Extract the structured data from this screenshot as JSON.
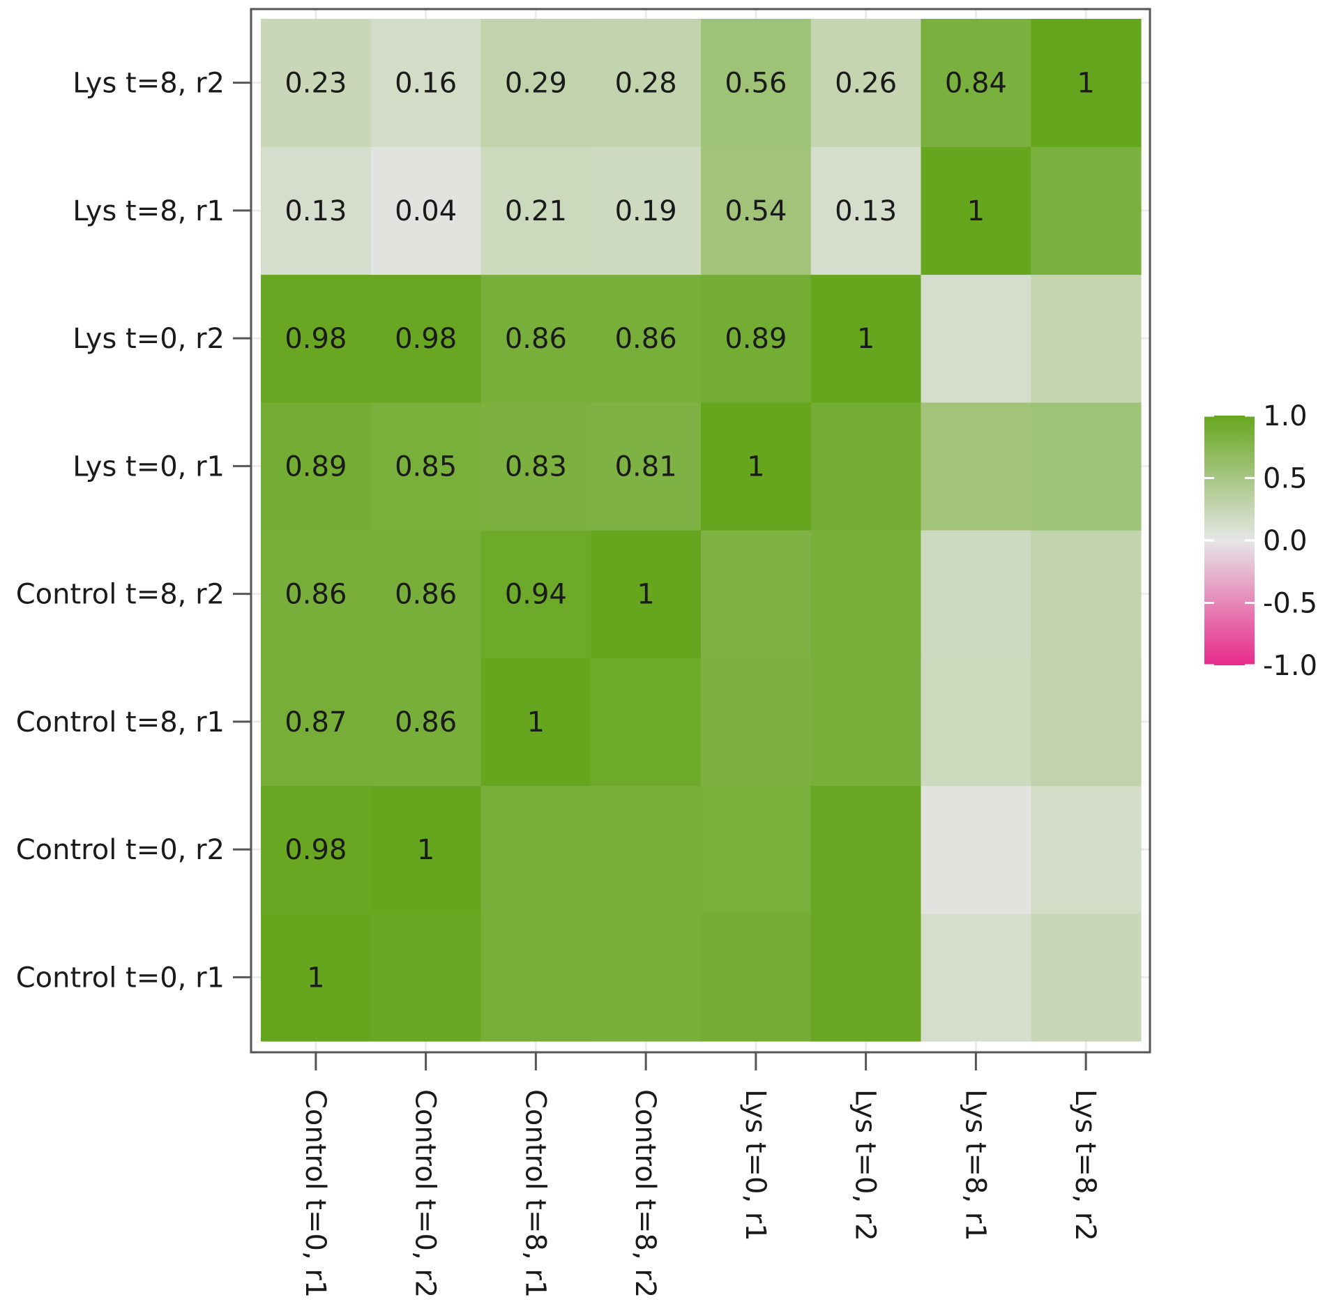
{
  "chart_data": {
    "type": "heatmap",
    "title": "",
    "xlabel": "",
    "ylabel": "",
    "x": [
      "Control t=0, r1",
      "Control t=0, r2",
      "Control t=8, r1",
      "Control t=8, r2",
      "Lys t=0, r1",
      "Lys t=0, r2",
      "Lys t=8, r1",
      "Lys t=8, r2"
    ],
    "y": [
      "Control t=0, r1",
      "Control t=0, r2",
      "Control t=8, r1",
      "Control t=8, r2",
      "Lys t=0, r1",
      "Lys t=0, r2",
      "Lys t=8, r1",
      "Lys t=8, r2"
    ],
    "values": [
      [
        1.0,
        0.98,
        0.87,
        0.86,
        0.89,
        0.98,
        0.13,
        0.23
      ],
      [
        0.98,
        1.0,
        0.86,
        0.86,
        0.85,
        0.98,
        0.04,
        0.16
      ],
      [
        0.87,
        0.86,
        1.0,
        0.94,
        0.83,
        0.86,
        0.21,
        0.29
      ],
      [
        0.86,
        0.86,
        0.94,
        1.0,
        0.81,
        0.86,
        0.19,
        0.28
      ],
      [
        0.89,
        0.85,
        0.83,
        0.81,
        1.0,
        0.89,
        0.54,
        0.56
      ],
      [
        0.98,
        0.98,
        0.86,
        0.86,
        0.89,
        1.0,
        0.13,
        0.26
      ],
      [
        0.13,
        0.04,
        0.21,
        0.19,
        0.54,
        0.13,
        1.0,
        0.84
      ],
      [
        0.23,
        0.16,
        0.29,
        0.28,
        0.56,
        0.26,
        0.84,
        1.0
      ]
    ],
    "cell_labels_shown": "lower-left triangle including diagonal",
    "color_scale": {
      "min": -1.0,
      "max": 1.0,
      "low_color": "#e7298a",
      "mid_color": "#e6e6e6",
      "high_color": "#66a61e",
      "ticks": [
        "1.0",
        "0.5",
        "0.0",
        "-0.5",
        "-1.0"
      ]
    },
    "legend_placement": "right",
    "grid": true
  }
}
